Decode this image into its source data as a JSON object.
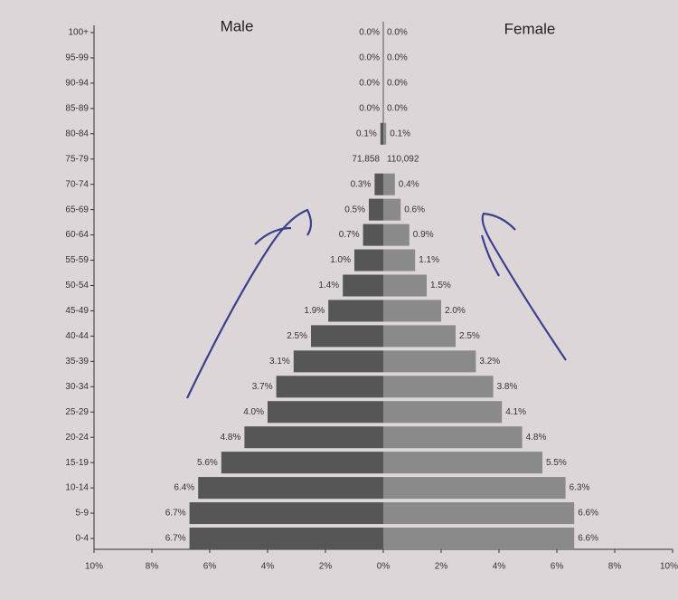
{
  "chart_data": {
    "type": "population-pyramid",
    "categories": [
      "100+",
      "95-99",
      "90-94",
      "85-89",
      "80-84",
      "75-79",
      "70-74",
      "65-69",
      "60-64",
      "55-59",
      "50-54",
      "45-49",
      "40-44",
      "35-39",
      "30-34",
      "25-29",
      "20-24",
      "15-19",
      "10-14",
      "5-9",
      "0-4"
    ],
    "series": [
      {
        "name": "Male",
        "color": "#565656",
        "values": [
          0.0,
          0.0,
          0.0,
          0.0,
          0.1,
          null,
          0.3,
          0.5,
          0.7,
          1.0,
          1.4,
          1.9,
          2.5,
          3.1,
          3.7,
          4.0,
          4.8,
          5.6,
          6.4,
          6.7,
          6.7
        ],
        "value_labels": [
          "0.0%",
          "0.0%",
          "0.0%",
          "0.0%",
          "0.1%",
          "71,858",
          "0.3%",
          "0.5%",
          "0.7%",
          "1.0%",
          "1.4%",
          "1.9%",
          "2.5%",
          "3.1%",
          "3.7%",
          "4.0%",
          "4.8%",
          "5.6%",
          "6.4%",
          "6.7%",
          "6.7%"
        ]
      },
      {
        "name": "Female",
        "color": "#8a8a8a",
        "values": [
          0.0,
          0.0,
          0.0,
          0.0,
          0.1,
          null,
          0.4,
          0.6,
          0.9,
          1.1,
          1.5,
          2.0,
          2.5,
          3.2,
          3.8,
          4.1,
          4.8,
          5.5,
          6.3,
          6.6,
          6.6
        ],
        "value_labels": [
          "0.0%",
          "0.0%",
          "0.0%",
          "0.0%",
          "0.1%",
          "110,092",
          "0.4%",
          "0.6%",
          "0.9%",
          "1.1%",
          "1.5%",
          "2.0%",
          "2.5%",
          "3.2%",
          "3.8%",
          "4.1%",
          "4.8%",
          "5.5%",
          "6.3%",
          "6.6%",
          "6.6%"
        ]
      }
    ],
    "xlim": [
      -10,
      10
    ],
    "xticks": [
      {
        "value": -10,
        "label": "10%"
      },
      {
        "value": -8,
        "label": "8%"
      },
      {
        "value": -6,
        "label": "6%"
      },
      {
        "value": -4,
        "label": "4%"
      },
      {
        "value": -2,
        "label": "2%"
      },
      {
        "value": 0,
        "label": "0%"
      },
      {
        "value": 2,
        "label": "2%"
      },
      {
        "value": 4,
        "label": "4%"
      },
      {
        "value": 6,
        "label": "6%"
      },
      {
        "value": 8,
        "label": "8%"
      },
      {
        "value": 10,
        "label": "10%"
      }
    ]
  }
}
